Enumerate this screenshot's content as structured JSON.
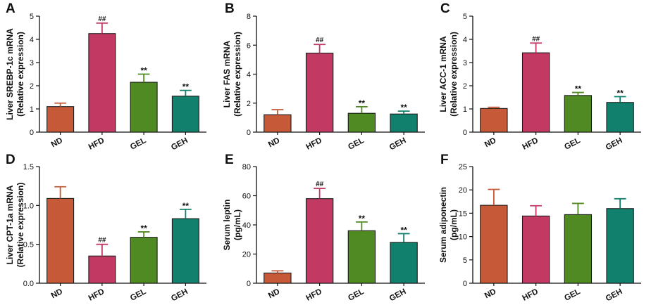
{
  "colors": {
    "ND": "#c65a38",
    "HFD": "#c23a63",
    "GEL": "#4f8a22",
    "GEH": "#11806c",
    "axis": "#111111"
  },
  "chart_data": [
    {
      "panel": "A",
      "type": "bar",
      "categories": [
        "ND",
        "HFD",
        "GEL",
        "GEH"
      ],
      "values": [
        1.1,
        4.25,
        2.15,
        1.55
      ],
      "errors": [
        0.15,
        0.45,
        0.35,
        0.25
      ],
      "annotations": [
        "",
        "##",
        "**",
        "**"
      ],
      "ylabel": [
        "Liver SREBP-1c mRNA",
        "(Relative expression)"
      ],
      "ylim": [
        0,
        5
      ],
      "yticks": [
        0,
        1,
        2,
        3,
        4,
        5
      ],
      "ytick_labels": [
        "0",
        "1",
        "2",
        "3",
        "4",
        "5"
      ]
    },
    {
      "panel": "B",
      "type": "bar",
      "categories": [
        "ND",
        "HFD",
        "GEL",
        "GEH"
      ],
      "values": [
        1.2,
        5.45,
        1.3,
        1.25
      ],
      "errors": [
        0.35,
        0.6,
        0.45,
        0.2
      ],
      "annotations": [
        "",
        "##",
        "**",
        "**"
      ],
      "ylabel": [
        "Liver FAS mRNA",
        "(Relative expression)"
      ],
      "ylim": [
        0,
        8
      ],
      "yticks": [
        0,
        2,
        4,
        6,
        8
      ],
      "ytick_labels": [
        "0",
        "2",
        "4",
        "6",
        "8"
      ]
    },
    {
      "panel": "C",
      "type": "bar",
      "categories": [
        "ND",
        "HFD",
        "GEL",
        "GEH"
      ],
      "values": [
        1.02,
        3.42,
        1.58,
        1.28
      ],
      "errors": [
        0.05,
        0.42,
        0.13,
        0.25
      ],
      "annotations": [
        "",
        "##",
        "**",
        "**"
      ],
      "ylabel": [
        "Liver ACC-1 mRNA",
        "(Relative expression)"
      ],
      "ylim": [
        0,
        5
      ],
      "yticks": [
        0,
        1,
        2,
        3,
        4,
        5
      ],
      "ytick_labels": [
        "0",
        "1",
        "2",
        "3",
        "4",
        "5"
      ]
    },
    {
      "panel": "D",
      "type": "bar",
      "categories": [
        "ND",
        "HFD",
        "GEL",
        "GEH"
      ],
      "values": [
        1.09,
        0.35,
        0.59,
        0.83
      ],
      "errors": [
        0.15,
        0.15,
        0.07,
        0.12
      ],
      "annotations": [
        "",
        "##",
        "**",
        "**"
      ],
      "ylabel": [
        "Liver CPT-1a mRNA",
        "(Relative expression)"
      ],
      "ylim": [
        0,
        1.5
      ],
      "yticks": [
        0,
        0.5,
        1.0,
        1.5
      ],
      "ytick_labels": [
        "0.0",
        "0.5",
        "1.0",
        "1.5"
      ]
    },
    {
      "panel": "E",
      "type": "bar",
      "categories": [
        "ND",
        "HFD",
        "GEL",
        "GEH"
      ],
      "values": [
        7,
        58,
        36,
        28
      ],
      "errors": [
        1.5,
        7,
        6,
        6
      ],
      "annotations": [
        "",
        "##",
        "**",
        "**"
      ],
      "ylabel": [
        "Serum leptin",
        "(pg/mL)"
      ],
      "ylim": [
        0,
        80
      ],
      "yticks": [
        0,
        20,
        40,
        60,
        80
      ],
      "ytick_labels": [
        "0",
        "20",
        "40",
        "60",
        "80"
      ]
    },
    {
      "panel": "F",
      "type": "bar",
      "categories": [
        "ND",
        "HFD",
        "GEL",
        "GEH"
      ],
      "values": [
        16.7,
        14.4,
        14.7,
        16.0
      ],
      "errors": [
        3.4,
        2.2,
        2.4,
        2.1
      ],
      "annotations": [
        "",
        "",
        "",
        ""
      ],
      "ylabel": [
        "Serum adiponectin",
        "(pg/mL)"
      ],
      "ylim": [
        0,
        25
      ],
      "yticks": [
        0,
        5,
        10,
        15,
        20,
        25
      ],
      "ytick_labels": [
        "0",
        "5",
        "10",
        "15",
        "20",
        "25"
      ]
    }
  ]
}
